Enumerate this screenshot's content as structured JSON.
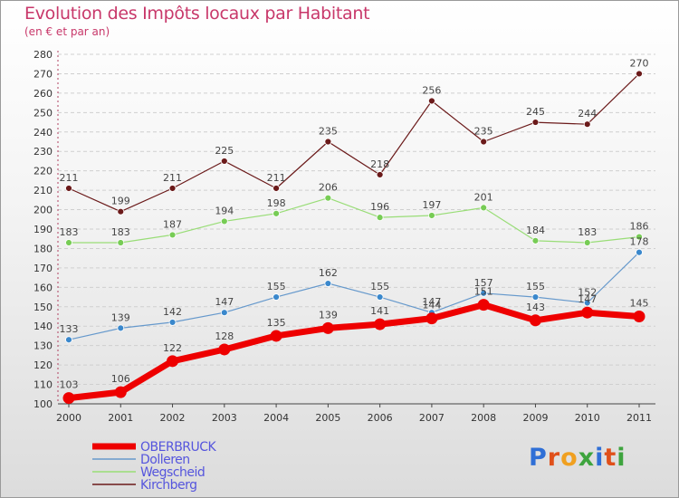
{
  "header": {
    "title": "Evolution des Impôts locaux par Habitant",
    "subtitle": "(en € et par an)"
  },
  "logo": {
    "text": "Proxiti",
    "letters": [
      {
        "char": "P",
        "color": "#2f6fd6"
      },
      {
        "char": "r",
        "color": "#e0501a"
      },
      {
        "char": "o",
        "color": "#f0a020"
      },
      {
        "char": "x",
        "color": "#3ea43e"
      },
      {
        "char": "i",
        "color": "#2f6fd6"
      },
      {
        "char": "t",
        "color": "#e0501a"
      },
      {
        "char": "i",
        "color": "#3ea43e"
      }
    ]
  },
  "chart_data": {
    "type": "line",
    "title": "Evolution des Impôts locaux par Habitant",
    "subtitle": "(en € et par an)",
    "xlabel": "",
    "ylabel": "",
    "x": [
      "2000",
      "2001",
      "2002",
      "2003",
      "2004",
      "2005",
      "2006",
      "2007",
      "2008",
      "2009",
      "2010",
      "2011"
    ],
    "ylim": [
      100,
      280
    ],
    "yticks": [
      100,
      110,
      120,
      130,
      140,
      150,
      160,
      170,
      180,
      190,
      200,
      210,
      220,
      230,
      240,
      250,
      260,
      270,
      280
    ],
    "grid": "horizontal dashed",
    "legend_position": "bottom-left",
    "series": [
      {
        "name": "Kirchberg",
        "color": "#6b1a1a",
        "marker": "#6b1a1a",
        "values": [
          211,
          199,
          211,
          225,
          211,
          235,
          218,
          256,
          235,
          245,
          244,
          270
        ]
      },
      {
        "name": "Wegscheid",
        "color": "#99dd77",
        "marker": "#77cc55",
        "values": [
          183,
          183,
          187,
          194,
          198,
          206,
          196,
          197,
          201,
          184,
          183,
          186
        ]
      },
      {
        "name": "Dolleren",
        "color": "#6699cc",
        "marker": "#3a88cc",
        "values": [
          133,
          139,
          142,
          147,
          155,
          162,
          155,
          147,
          157,
          155,
          152,
          178
        ]
      },
      {
        "name": "OBERBRUCK",
        "color": "#ee0000",
        "marker": "#ee0000",
        "values": [
          103,
          106,
          122,
          128,
          135,
          139,
          141,
          144,
          151,
          143,
          147,
          145
        ]
      }
    ],
    "legend": [
      "OBERBRUCK",
      "Dolleren",
      "Wegscheid",
      "Kirchberg"
    ],
    "data_labels": [
      {
        "series": "Kirchberg",
        "labels": [
          "211",
          "199",
          "211",
          "225",
          "211",
          "235",
          "218",
          "256",
          "235",
          "245",
          "244",
          "270"
        ]
      },
      {
        "series": "Wegscheid",
        "labels": [
          "183",
          "183",
          "187",
          "194",
          "198",
          "206",
          "196",
          "197",
          "201",
          "184",
          "183",
          "186"
        ]
      },
      {
        "series": "Dolleren",
        "labels": [
          "133",
          "139",
          "142",
          "147",
          "155",
          "162",
          "155",
          "147",
          "157",
          "155",
          "152",
          "178"
        ]
      },
      {
        "series": "OBERBRUCK",
        "labels": [
          "103",
          "106",
          "122",
          "128",
          "135",
          "139",
          "141",
          "144",
          "151",
          "143",
          "147",
          "145"
        ]
      }
    ]
  }
}
